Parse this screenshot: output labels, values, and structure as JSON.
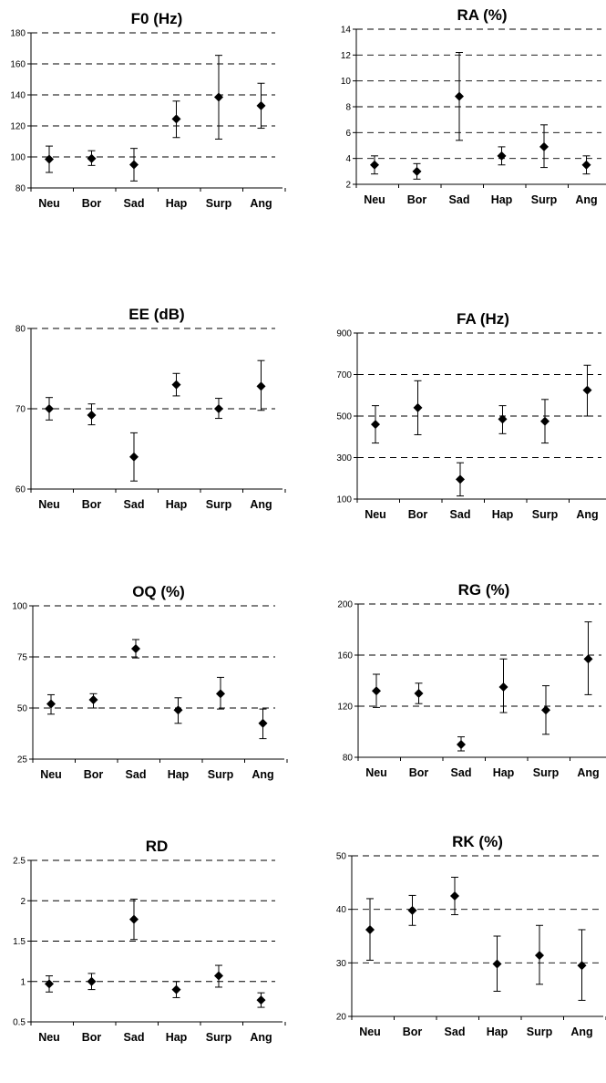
{
  "chart_data": [
    {
      "type": "scatter",
      "title": "F0 (Hz)",
      "categories": [
        "Neu",
        "Bor",
        "Sad",
        "Hap",
        "Surp",
        "Ang"
      ],
      "yticks": [
        80,
        100,
        120,
        140,
        160,
        180
      ],
      "ylim": [
        80,
        180
      ],
      "grid": true,
      "series": [
        {
          "values": [
            98.5,
            99,
            95,
            124.5,
            138.5,
            133
          ],
          "err_low": [
            90,
            94.5,
            84.5,
            112.5,
            111.5,
            118.5
          ],
          "err_high": [
            107,
            104,
            105.5,
            136,
            165.5,
            147.5
          ]
        }
      ]
    },
    {
      "type": "scatter",
      "title": "RA (%)",
      "categories": [
        "Neu",
        "Bor",
        "Sad",
        "Hap",
        "Surp",
        "Ang"
      ],
      "yticks": [
        2,
        4,
        6,
        8,
        10,
        12,
        14
      ],
      "ylim": [
        2,
        14
      ],
      "grid": true,
      "series": [
        {
          "values": [
            3.5,
            3,
            8.8,
            4.2,
            4.9,
            3.5
          ],
          "err_low": [
            2.8,
            2.4,
            5.4,
            3.5,
            3.3,
            2.8
          ],
          "err_high": [
            4.2,
            3.6,
            12.2,
            4.9,
            6.6,
            4.2
          ]
        }
      ]
    },
    {
      "type": "scatter",
      "title": "EE (dB)",
      "categories": [
        "Neu",
        "Bor",
        "Sad",
        "Hap",
        "Surp",
        "Ang"
      ],
      "yticks": [
        60,
        70,
        80
      ],
      "ylim": [
        60,
        80
      ],
      "grid": true,
      "series": [
        {
          "values": [
            70,
            69.2,
            64,
            73,
            70,
            72.8
          ],
          "err_low": [
            68.6,
            68,
            61,
            71.6,
            68.8,
            69.8
          ],
          "err_high": [
            71.4,
            70.6,
            67,
            74.4,
            71.3,
            76
          ]
        }
      ]
    },
    {
      "type": "scatter",
      "title": "FA (Hz)",
      "categories": [
        "Neu",
        "Bor",
        "Sad",
        "Hap",
        "Surp",
        "Ang"
      ],
      "yticks": [
        100,
        300,
        500,
        700,
        900
      ],
      "ylim": [
        100,
        900
      ],
      "grid": true,
      "series": [
        {
          "values": [
            460,
            540,
            195,
            485,
            475,
            625
          ],
          "err_low": [
            370,
            410,
            115,
            415,
            370,
            500
          ],
          "err_high": [
            550,
            670,
            275,
            550,
            580,
            745
          ]
        }
      ]
    },
    {
      "type": "scatter",
      "title": "OQ (%)",
      "categories": [
        "Neu",
        "Bor",
        "Sad",
        "Hap",
        "Surp",
        "Ang"
      ],
      "yticks": [
        25,
        50,
        75,
        100
      ],
      "ylim": [
        25,
        100
      ],
      "grid": true,
      "series": [
        {
          "values": [
            52,
            54,
            79,
            49,
            57,
            42.5
          ],
          "err_low": [
            47,
            50,
            74.5,
            42.5,
            49.5,
            35
          ],
          "err_high": [
            56.5,
            57,
            83.5,
            55,
            65,
            49.5
          ]
        }
      ]
    },
    {
      "type": "scatter",
      "title": "RG (%)",
      "categories": [
        "Neu",
        "Bor",
        "Sad",
        "Hap",
        "Surp",
        "Ang"
      ],
      "yticks": [
        80,
        120,
        160,
        200
      ],
      "ylim": [
        80,
        200
      ],
      "grid": true,
      "series": [
        {
          "values": [
            132,
            130,
            90,
            135,
            117,
            157
          ],
          "err_low": [
            119,
            122,
            85,
            115,
            98,
            129
          ],
          "err_high": [
            145,
            138,
            96,
            157,
            136,
            186
          ]
        }
      ]
    },
    {
      "type": "scatter",
      "title": "RD",
      "categories": [
        "Neu",
        "Bor",
        "Sad",
        "Hap",
        "Surp",
        "Ang"
      ],
      "yticks": [
        0.5,
        1,
        1.5,
        2,
        2.5
      ],
      "ytick_labels": [
        "0.5",
        "1",
        "1.5",
        "2",
        "2.5"
      ],
      "ylim": [
        0.5,
        2.5
      ],
      "grid": true,
      "series": [
        {
          "values": [
            0.97,
            1.0,
            1.77,
            0.9,
            1.07,
            0.77
          ],
          "err_low": [
            0.87,
            0.9,
            1.52,
            0.8,
            0.93,
            0.68
          ],
          "err_high": [
            1.07,
            1.1,
            2.02,
            1.0,
            1.2,
            0.86
          ]
        }
      ]
    },
    {
      "type": "scatter",
      "title": "RK (%)",
      "categories": [
        "Neu",
        "Bor",
        "Sad",
        "Hap",
        "Surp",
        "Ang"
      ],
      "yticks": [
        20,
        30,
        40,
        50
      ],
      "ylim": [
        20,
        50
      ],
      "grid": true,
      "series": [
        {
          "values": [
            36.2,
            39.8,
            42.5,
            29.8,
            31.4,
            29.5
          ],
          "err_low": [
            30.5,
            37,
            39,
            24.7,
            26,
            23
          ],
          "err_high": [
            42,
            42.6,
            46,
            35,
            37,
            36.2
          ]
        }
      ]
    }
  ]
}
